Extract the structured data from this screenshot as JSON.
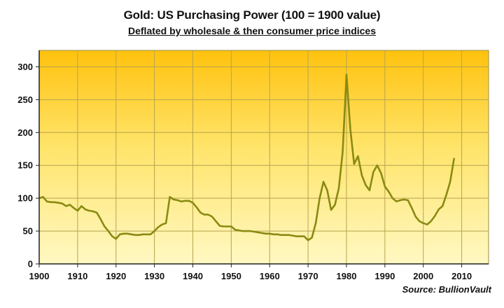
{
  "chart_data": {
    "type": "line",
    "title": "Gold: US Purchasing Power (100 = 1900 value)",
    "subtitle": "Deflated by wholesale & then consumer price indices",
    "source": "Source: BullionVault",
    "xlabel": "",
    "ylabel": "",
    "xlim": [
      1900,
      2017
    ],
    "ylim": [
      0,
      325
    ],
    "x_ticks": [
      1900,
      1910,
      1920,
      1930,
      1940,
      1950,
      1960,
      1970,
      1980,
      1990,
      2000,
      2010
    ],
    "y_ticks": [
      0,
      50,
      100,
      150,
      200,
      250,
      300
    ],
    "grid": "horizontal and vertical",
    "legend": "none",
    "background": "gradient yellow",
    "colors": {
      "line": "#8a8a12",
      "grid": "#b7a44e",
      "background_top": "#ffc20e",
      "background_bottom": "#fff8c2"
    },
    "series": [
      {
        "x": [
          1900,
          1901,
          1902,
          1903,
          1904,
          1905,
          1906,
          1907,
          1908,
          1909,
          1910,
          1911,
          1912,
          1913,
          1914,
          1915,
          1916,
          1917,
          1918,
          1919,
          1920,
          1921,
          1922,
          1923,
          1924,
          1925,
          1926,
          1927,
          1928,
          1929,
          1930,
          1931,
          1932,
          1933,
          1934,
          1935,
          1936,
          1937,
          1938,
          1939,
          1940,
          1941,
          1942,
          1943,
          1944,
          1945,
          1946,
          1947,
          1948,
          1949,
          1950,
          1951,
          1952,
          1953,
          1954,
          1955,
          1956,
          1957,
          1958,
          1959,
          1960,
          1961,
          1962,
          1963,
          1964,
          1965,
          1966,
          1967,
          1968,
          1969,
          1970,
          1971,
          1972,
          1973,
          1974,
          1975,
          1976,
          1977,
          1978,
          1979,
          1980,
          1981,
          1982,
          1983,
          1984,
          1985,
          1986,
          1987,
          1988,
          1989,
          1990,
          1991,
          1992,
          1993,
          1994,
          1995,
          1996,
          1997,
          1998,
          1999,
          2000,
          2001,
          2002,
          2003,
          2004,
          2005,
          2006,
          2007,
          2008
        ],
        "values": [
          100,
          102,
          95,
          94,
          94,
          93,
          92,
          88,
          90,
          85,
          81,
          88,
          83,
          81,
          80,
          78,
          68,
          57,
          50,
          42,
          38,
          45,
          46,
          46,
          45,
          44,
          44,
          45,
          45,
          45,
          50,
          56,
          60,
          62,
          102,
          98,
          97,
          95,
          96,
          96,
          93,
          86,
          78,
          75,
          75,
          72,
          65,
          58,
          57,
          57,
          57,
          52,
          51,
          50,
          50,
          50,
          49,
          48,
          47,
          46,
          46,
          45,
          45,
          44,
          44,
          44,
          43,
          42,
          42,
          42,
          36,
          40,
          62,
          100,
          125,
          112,
          82,
          90,
          115,
          170,
          288,
          205,
          152,
          164,
          135,
          120,
          112,
          140,
          150,
          138,
          118,
          110,
          100,
          95,
          97,
          98,
          97,
          85,
          72,
          65,
          62,
          60,
          65,
          73,
          83,
          88,
          105,
          125,
          160
        ]
      }
    ]
  }
}
